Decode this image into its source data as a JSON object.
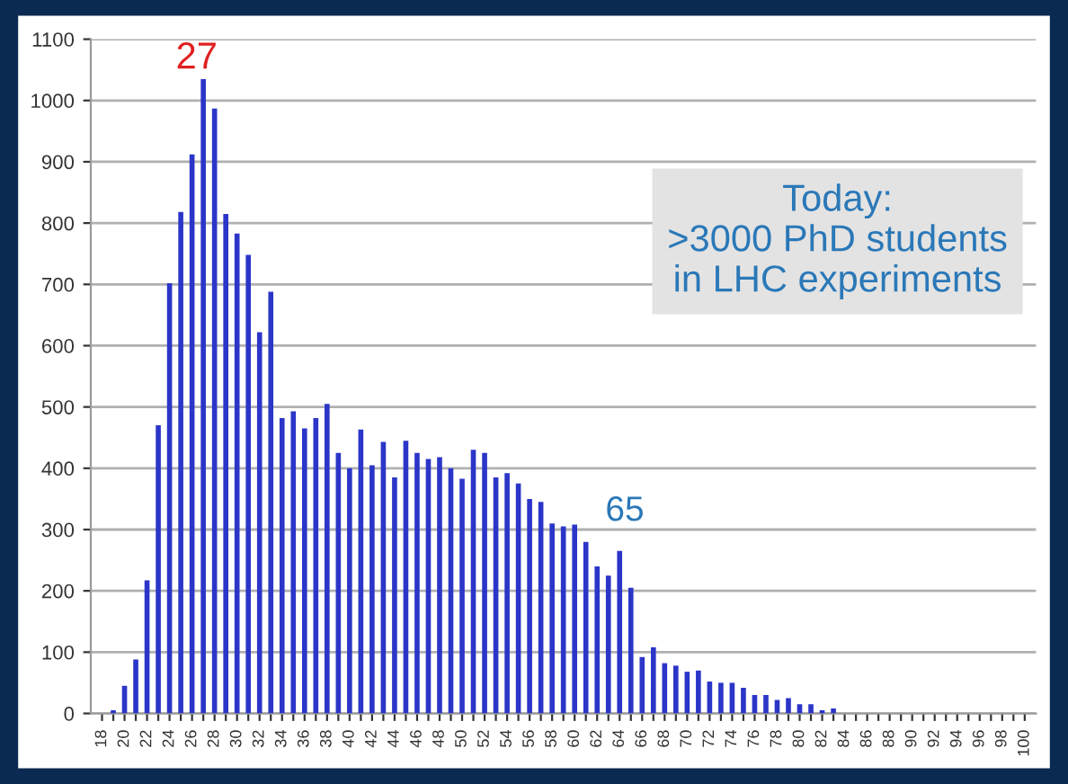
{
  "chart_data": {
    "type": "bar",
    "categories": [
      "18",
      null,
      "20",
      null,
      "22",
      null,
      "24",
      null,
      "26",
      null,
      "28",
      null,
      "30",
      null,
      "32",
      null,
      "34",
      null,
      "36",
      null,
      "38",
      null,
      "40",
      null,
      "42",
      null,
      "44",
      null,
      "46",
      null,
      "48",
      null,
      "50",
      null,
      "52",
      null,
      "54",
      null,
      "56",
      null,
      "58",
      null,
      "60",
      null,
      "62",
      null,
      "64",
      null,
      "66",
      null,
      "68",
      null,
      "70",
      null,
      "72",
      null,
      "74",
      null,
      "76",
      null,
      "78",
      null,
      "80",
      null,
      "82",
      null,
      "84",
      null,
      "86",
      null,
      "88",
      null,
      "90",
      null,
      "92",
      null,
      "94",
      null,
      "96",
      null,
      "98",
      null,
      "100"
    ],
    "values": [
      0,
      5,
      45,
      88,
      217,
      470,
      702,
      818,
      912,
      1035,
      987,
      815,
      783,
      748,
      622,
      688,
      482,
      493,
      465,
      482,
      505,
      425,
      400,
      463,
      405,
      443,
      385,
      445,
      425,
      415,
      418,
      400,
      383,
      430,
      425,
      385,
      392,
      375,
      350,
      345,
      310,
      305,
      308,
      280,
      240,
      225,
      265,
      205,
      92,
      108,
      82,
      78,
      68,
      70,
      52,
      50,
      50,
      42,
      30,
      30,
      22,
      25,
      15,
      15,
      5,
      8,
      0,
      0,
      0,
      0,
      0,
      0,
      0,
      0,
      0,
      0,
      0,
      0,
      0,
      0,
      0,
      0,
      0
    ],
    "color": "#2b35c8",
    "ylim": [
      0,
      1100
    ],
    "yticks": [
      0,
      100,
      200,
      300,
      400,
      500,
      600,
      700,
      800,
      900,
      1000,
      1100
    ],
    "grid": "y",
    "annotations": [
      "27",
      "65",
      "Today:\n>3000 PhD students\nin LHC experiments"
    ]
  }
}
